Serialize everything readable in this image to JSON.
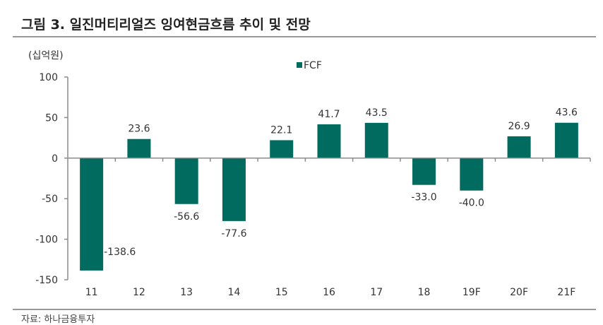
{
  "header": {
    "title": "그림 3. 일진머티리얼즈 잉여현금흐름 추이 및 전망"
  },
  "footer": {
    "source": "자료: 하나금융투자"
  },
  "colors": {
    "bar": "#006b5e",
    "axis": "#8c8c8c"
  },
  "chart_data": {
    "type": "bar",
    "title": "그림 3. 일진머티리얼즈 잉여현금흐름 추이 및 전망",
    "unit_label": "(십억원)",
    "xlabel": "",
    "ylabel": "",
    "categories": [
      "11",
      "12",
      "13",
      "14",
      "15",
      "16",
      "17",
      "18",
      "19F",
      "20F",
      "21F"
    ],
    "series": [
      {
        "name": "FCF",
        "values": [
          -138.6,
          23.6,
          -56.6,
          -77.6,
          22.1,
          41.7,
          43.5,
          -33.0,
          -40.0,
          26.9,
          43.6
        ]
      }
    ],
    "data_labels": [
      "-138.6",
      "23.6",
      "-56.6",
      "-77.6",
      "22.1",
      "41.7",
      "43.5",
      "-33.0",
      "-40.0",
      "26.9",
      "43.6"
    ],
    "ylim": [
      -150,
      100
    ],
    "yticks": [
      100,
      50,
      0,
      -50,
      -100,
      -150
    ],
    "ytick_labels": [
      "100",
      "50",
      "0",
      "-50",
      "-100",
      "-150"
    ],
    "legend": {
      "position": "top-center",
      "entries": [
        "FCF"
      ]
    },
    "grid": false
  }
}
